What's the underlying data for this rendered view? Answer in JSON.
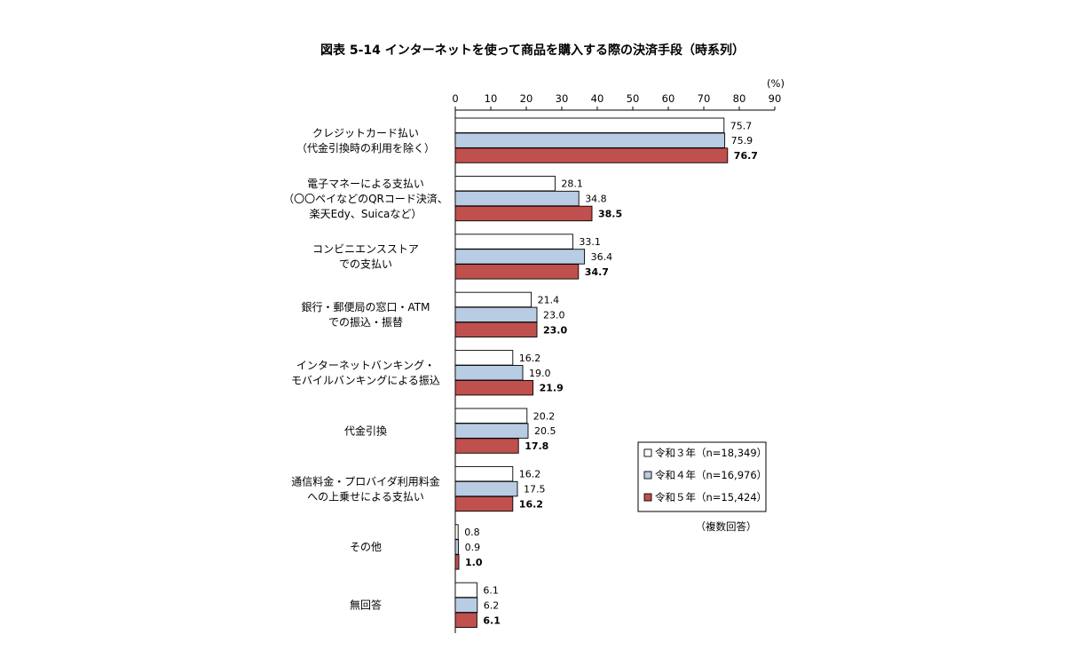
{
  "chart_data": {
    "type": "bar",
    "orientation": "horizontal",
    "title": "図表 5-14 インターネットを使って商品を購入する際の決済手段（時系列）",
    "unit_label": "(%)",
    "xlim": [
      0,
      90
    ],
    "x_ticks": [
      0,
      10,
      20,
      30,
      40,
      50,
      60,
      70,
      80,
      90
    ],
    "grid": false,
    "legend_position": "right-bottom",
    "note": "（複数回答）",
    "categories": [
      [
        "クレジットカード払い",
        "（代金引換時の利用を除く）"
      ],
      [
        "電子マネーによる支払い",
        "（〇〇ペイなどのQRコード決済、",
        "楽天Edy、Suicaなど）"
      ],
      [
        "コンビニエンスストア",
        "での支払い"
      ],
      [
        "銀行・郵便局の窓口・ATM",
        "での振込・振替"
      ],
      [
        "インターネットバンキング・",
        "モバイルバンキングによる振込"
      ],
      [
        "代金引換"
      ],
      [
        "通信料金・プロバイダ利用料金",
        "への上乗せによる支払い"
      ],
      [
        "その他"
      ],
      [
        "無回答"
      ]
    ],
    "series": [
      {
        "name": "令和３年（n=18,349）",
        "color": "#ffffff",
        "bold_labels": false,
        "values": [
          75.7,
          28.1,
          33.1,
          21.4,
          16.2,
          20.2,
          16.2,
          0.8,
          6.1
        ]
      },
      {
        "name": "令和４年（n=16,976）",
        "color": "#b8cce4",
        "bold_labels": false,
        "values": [
          75.9,
          34.8,
          36.4,
          23.0,
          19.0,
          20.5,
          17.5,
          0.9,
          6.2
        ]
      },
      {
        "name": "令和５年（n=15,424）",
        "color": "#c0504d",
        "bold_labels": true,
        "values": [
          76.7,
          38.5,
          34.7,
          23.0,
          21.9,
          17.8,
          16.2,
          1.0,
          6.1
        ]
      }
    ]
  }
}
